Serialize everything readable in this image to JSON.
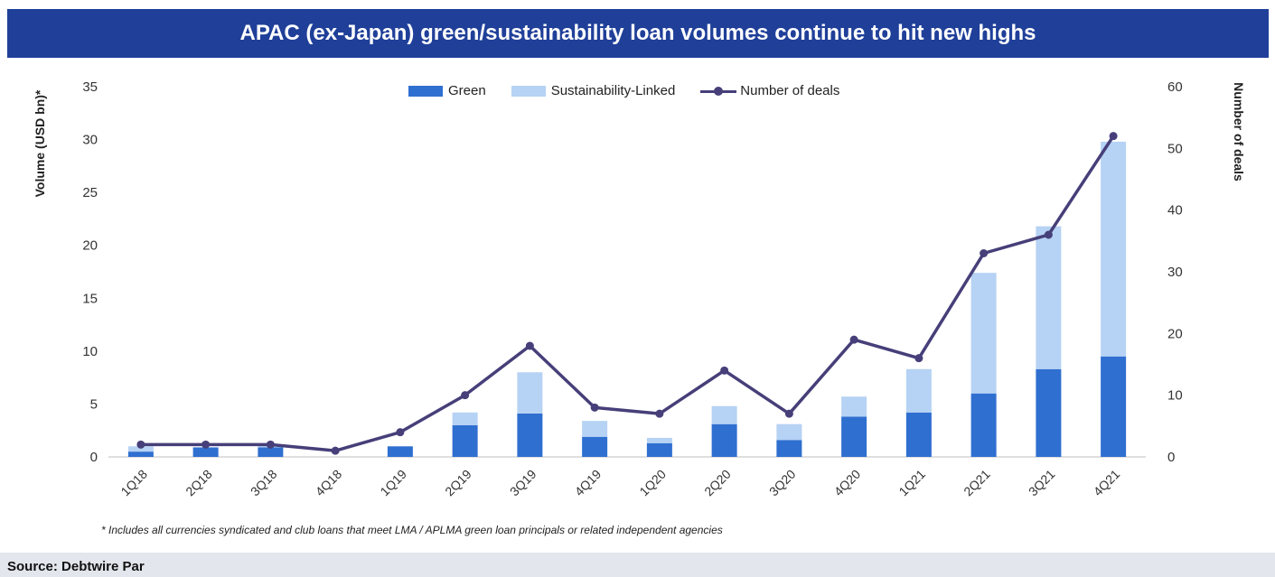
{
  "title": "APAC (ex-Japan) green/sustainability loan volumes continue to hit new highs",
  "footnote": "* Includes all currencies syndicated and club loans that meet LMA / APLMA green loan principals or related independent agencies",
  "source": "Source: Debtwire Par",
  "colors": {
    "header": "#1f3f99",
    "green": "#2f6fd0",
    "sustainability_linked": "#b6d2f4",
    "deals_line": "#463f79"
  },
  "chart_data": {
    "type": "bar",
    "stacked": true,
    "categories": [
      "1Q18",
      "2Q18",
      "3Q18",
      "4Q18",
      "1Q19",
      "2Q19",
      "3Q19",
      "4Q19",
      "1Q20",
      "2Q20",
      "3Q20",
      "4Q20",
      "1Q21",
      "2Q21",
      "3Q21",
      "4Q21"
    ],
    "series": [
      {
        "name": "Green",
        "type": "bar",
        "axis": "left",
        "values": [
          0.5,
          0.9,
          0.9,
          0,
          1.0,
          3.0,
          4.1,
          1.9,
          1.3,
          3.1,
          1.6,
          3.8,
          4.2,
          6.0,
          8.3,
          9.5
        ]
      },
      {
        "name": "Sustainability-Linked",
        "type": "bar",
        "axis": "left",
        "values": [
          0.5,
          0,
          0.2,
          0,
          0,
          1.2,
          3.9,
          1.5,
          0.5,
          1.7,
          1.5,
          1.9,
          4.1,
          11.4,
          13.5,
          20.3
        ]
      },
      {
        "name": "Number of deals",
        "type": "line",
        "axis": "right",
        "values": [
          2,
          2,
          2,
          1,
          4,
          10,
          18,
          8,
          7,
          14,
          7,
          19,
          16,
          33,
          36,
          52
        ]
      }
    ],
    "ylabel": "Volume (USD bn)*",
    "y2label": "Number of deals",
    "ylim": [
      0,
      35
    ],
    "yticks": [
      0,
      5,
      10,
      15,
      20,
      25,
      30,
      35
    ],
    "y2lim": [
      0,
      60
    ],
    "y2ticks": [
      0,
      10,
      20,
      30,
      40,
      50,
      60
    ],
    "legend_position": "top-center",
    "grid": false
  }
}
